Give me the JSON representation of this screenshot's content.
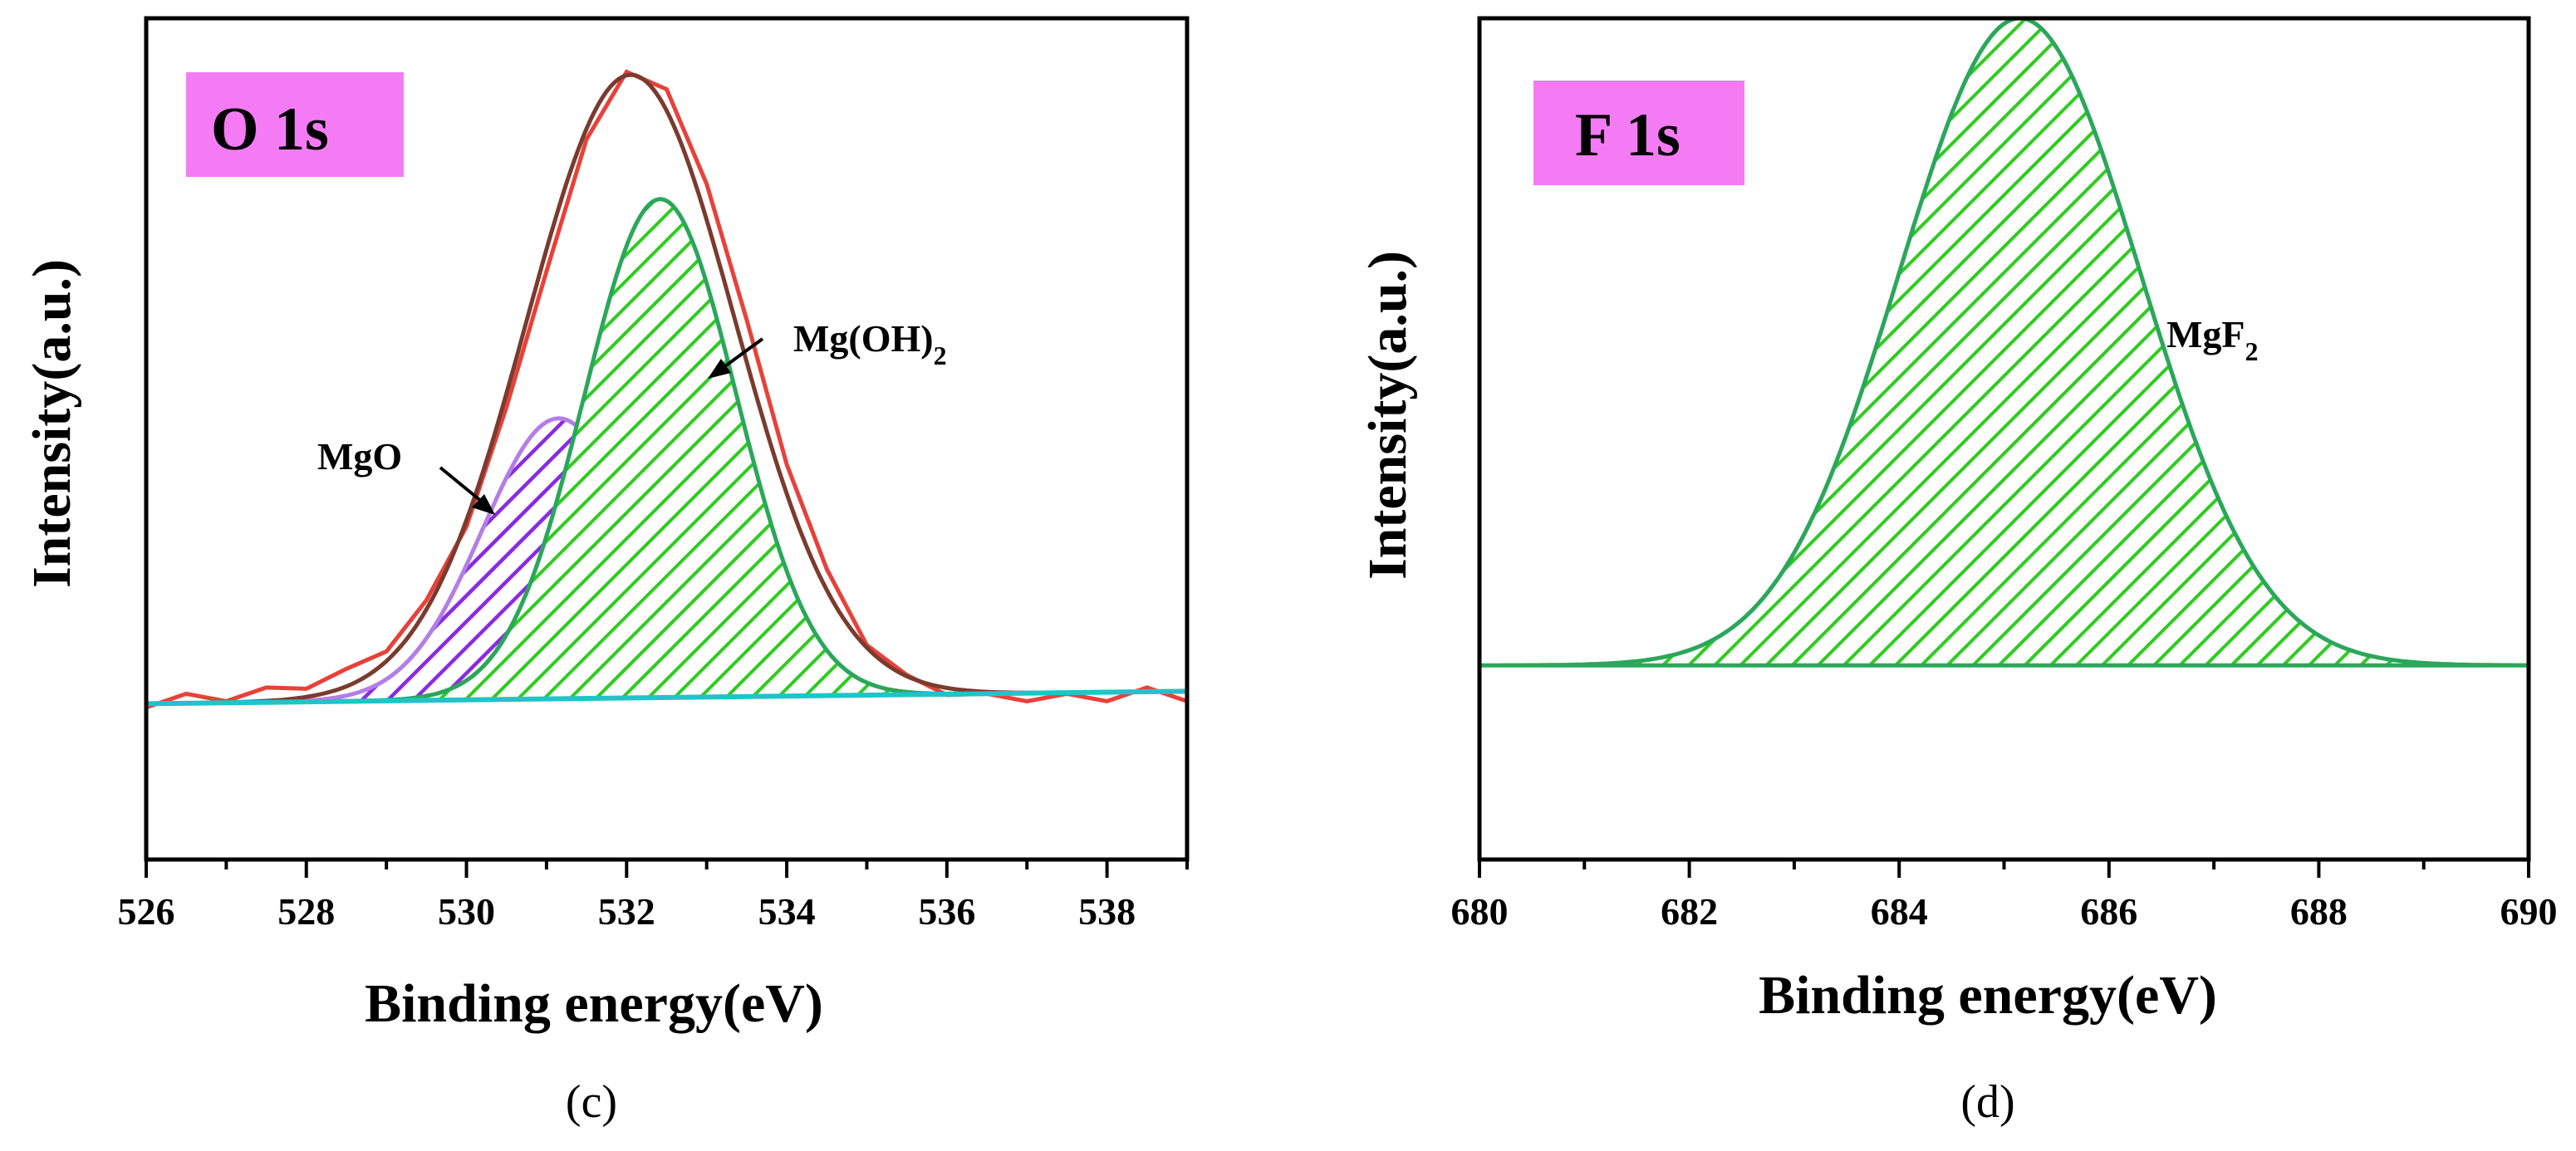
{
  "chart_data": [
    {
      "panel": "(c)",
      "type": "area",
      "title": "O 1s",
      "xlabel": "Binding energy(eV)",
      "ylabel": "Intensity(a.u.)",
      "xlim": [
        526,
        539
      ],
      "xticks": [
        526,
        528,
        530,
        532,
        534,
        536,
        538
      ],
      "ylim": [
        -0.25,
        1.1
      ],
      "yticks_shown": false,
      "series": [
        {
          "name": "Raw data",
          "style": "line",
          "color": "#e8413a",
          "x": [
            526,
            526.5,
            527,
            527.5,
            528,
            528.5,
            529,
            529.5,
            530,
            530.5,
            531,
            531.5,
            532,
            532.5,
            533,
            533.5,
            534,
            534.5,
            535,
            535.5,
            536,
            536.5,
            537,
            537.5,
            538,
            538.5,
            539
          ],
          "y": [
            0.0,
            0.01,
            0.01,
            0.02,
            0.03,
            0.05,
            0.09,
            0.16,
            0.29,
            0.47,
            0.7,
            0.9,
            1.02,
            0.98,
            0.84,
            0.61,
            0.39,
            0.21,
            0.1,
            0.04,
            0.02,
            0.01,
            0.01,
            0.01,
            0.01,
            0.02,
            0.01
          ]
        },
        {
          "name": "Envelope fit",
          "style": "line",
          "color": "#7a3b2e",
          "center": 532.05,
          "sigma": 1.3,
          "height": 1.0
        },
        {
          "name": "MgO",
          "style": "hatched-area",
          "color": "#8a2be2",
          "stroke": "#b37ee8",
          "center": 531.15,
          "sigma": 0.95,
          "height": 0.45
        },
        {
          "name": "Mg(OH)2",
          "style": "hatched-area",
          "color": "#2ecc1f",
          "stroke": "#2aa75a",
          "center": 532.42,
          "sigma": 0.95,
          "height": 0.8
        },
        {
          "name": "Background",
          "style": "line",
          "color": "#20c4c8",
          "y_start": 0.0,
          "y_end": 0.02
        }
      ],
      "annotations": [
        {
          "text": "MgO",
          "target": "MgO"
        },
        {
          "text": "Mg(OH)",
          "subscript": "2",
          "target": "Mg(OH)2"
        }
      ]
    },
    {
      "panel": "(d)",
      "type": "area",
      "title": "F 1s",
      "xlabel": "Binding energy(eV)",
      "ylabel": "Intensity(a.u.)",
      "xlim": [
        680,
        690
      ],
      "xticks": [
        680,
        682,
        684,
        686,
        688,
        690
      ],
      "ylim": [
        -0.3,
        1.0
      ],
      "yticks_shown": false,
      "series": [
        {
          "name": "MgF2",
          "style": "hatched-area",
          "color": "#2ecc1f",
          "stroke": "#2aa75a",
          "center": 685.15,
          "sigma": 1.15,
          "height": 1.0
        }
      ],
      "annotations": [
        {
          "text": "MgF",
          "subscript": "2",
          "target": "MgF2"
        }
      ]
    }
  ],
  "colors": {
    "title_box": "#f57bf5",
    "axis": "#000000"
  }
}
